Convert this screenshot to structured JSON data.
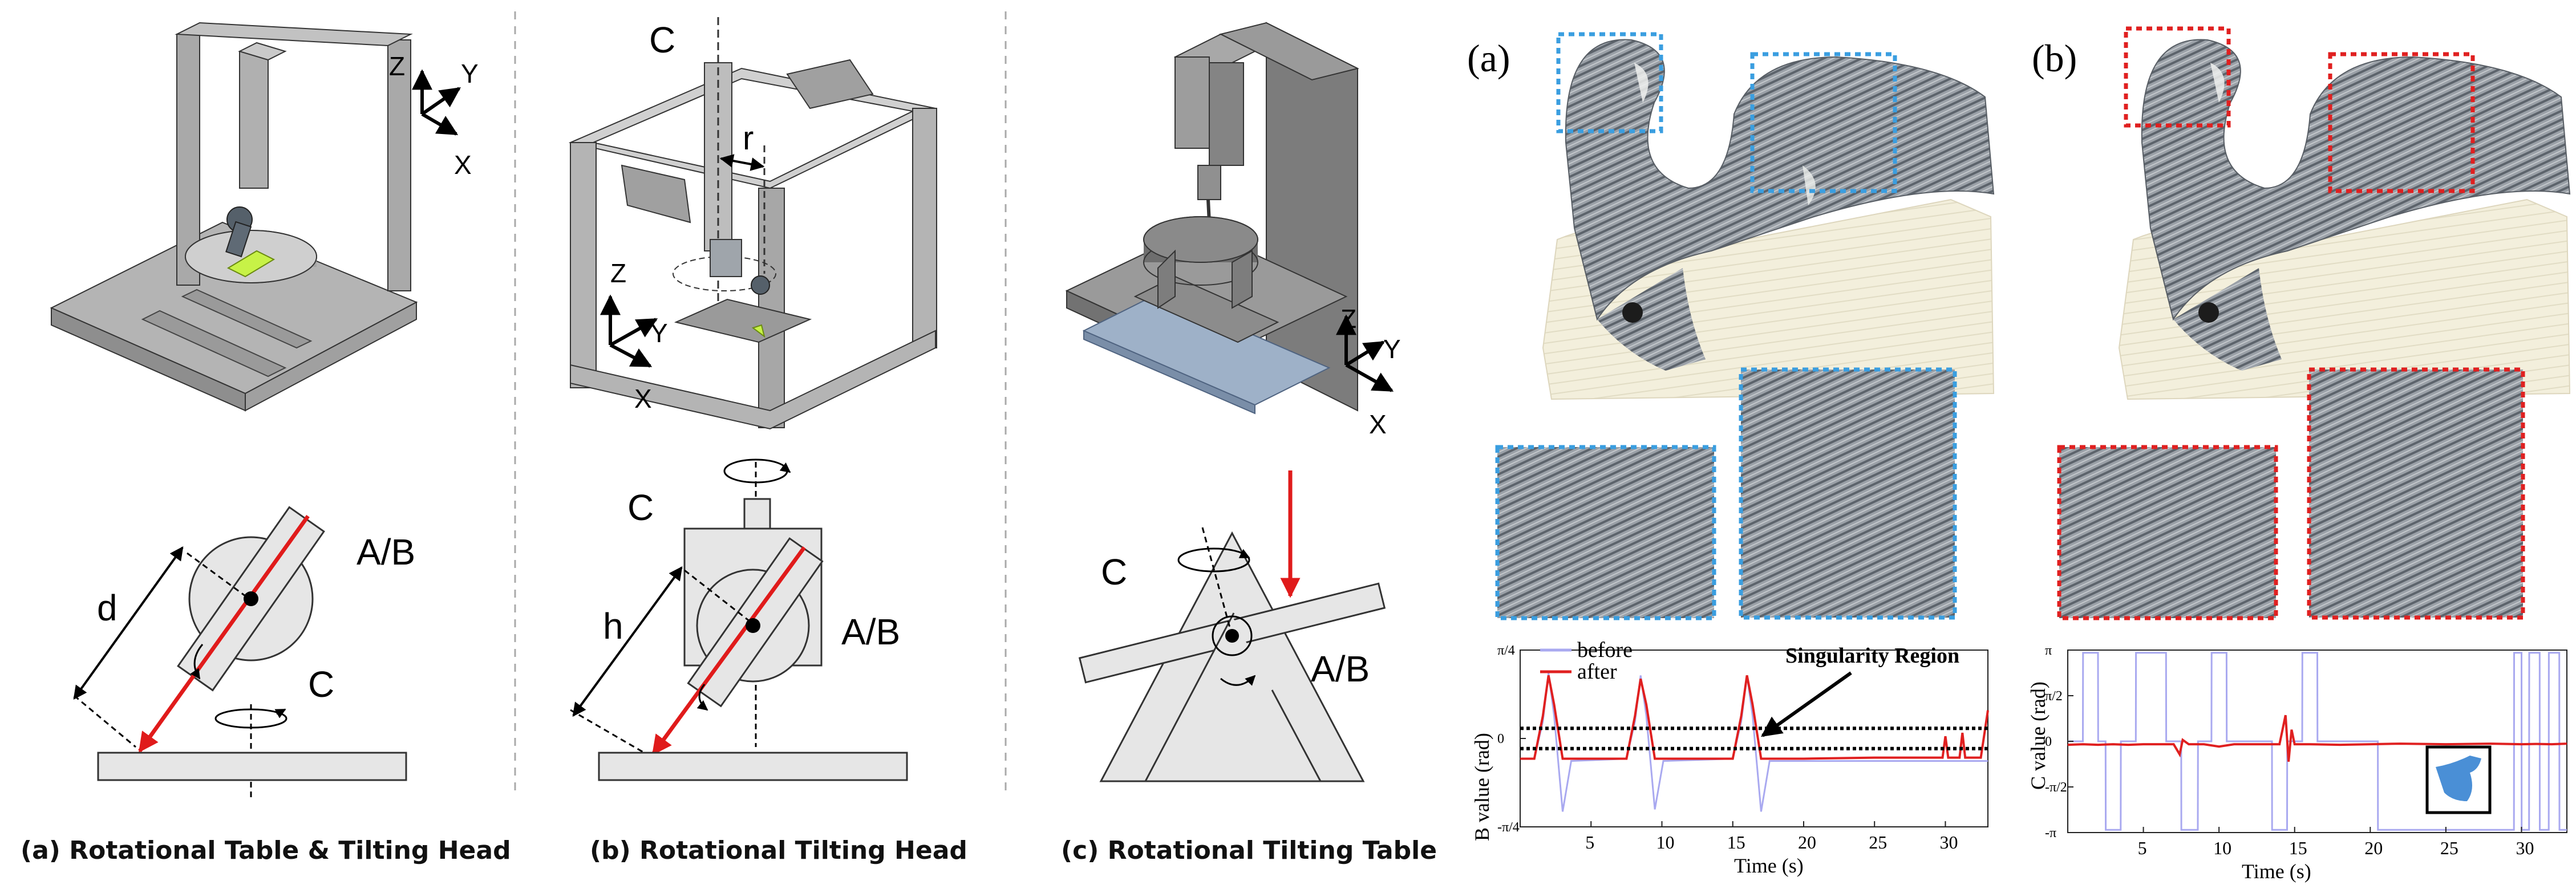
{
  "panels": {
    "a": {
      "caption": "(a) Rotational Table & Tilting Head",
      "axes": {
        "z": "Z",
        "y": "Y",
        "x": "X"
      },
      "labels": {
        "d": "d",
        "ab": "A/B",
        "c": "C"
      }
    },
    "b": {
      "caption": "(b) Rotational Tilting Head",
      "axes": {
        "z": "Z",
        "y": "Y",
        "x": "X"
      },
      "labels": {
        "c_top": "C",
        "r": "r",
        "h": "h",
        "ab": "A/B",
        "c": "C"
      }
    },
    "c": {
      "caption": "(c) Rotational Tilting Table",
      "axes": {
        "z": "Z",
        "y": "Y",
        "x": "X"
      },
      "labels": {
        "c": "C",
        "ab": "A/B"
      }
    }
  },
  "results": {
    "left_tag": "(a)",
    "right_tag": "(b)",
    "left_box_color": "#3a9ee0",
    "right_box_color": "#e02020"
  },
  "chart_data": [
    {
      "type": "line",
      "xlabel": "Time (s)",
      "ylabel": "B value (rad)",
      "xlim": [
        0,
        33
      ],
      "ylim": [
        -0.785,
        0.785
      ],
      "x_ticks": [
        "5",
        "10",
        "15",
        "20",
        "25",
        "30"
      ],
      "y_ticks": [
        "π/4",
        "0",
        "-π/4"
      ],
      "legend": [
        "before",
        "after"
      ],
      "legend_placement": "top-left",
      "annotation": "Singularity Region",
      "singularity_band": [
        -0.09,
        0.09
      ],
      "series": [
        {
          "name": "before",
          "color": "#a9a9f0",
          "x": [
            0,
            1,
            1.6,
            2.0,
            2.4,
            3.0,
            3.6,
            7.5,
            8.1,
            8.5,
            8.9,
            9.5,
            10.1,
            15,
            15.6,
            16.0,
            16.4,
            17.0,
            17.6,
            20,
            25,
            30,
            33
          ],
          "y": [
            -0.18,
            -0.18,
            0.15,
            0.58,
            0.2,
            -0.65,
            -0.2,
            -0.18,
            0.15,
            0.56,
            0.2,
            -0.63,
            -0.2,
            -0.18,
            0.15,
            0.56,
            0.2,
            -0.65,
            -0.2,
            -0.2,
            -0.2,
            -0.2,
            -0.2
          ]
        },
        {
          "name": "after",
          "color": "#e02020",
          "x": [
            0,
            1,
            1.6,
            2.0,
            2.4,
            3.0,
            3.6,
            7.5,
            8.1,
            8.5,
            8.9,
            9.5,
            10.1,
            15,
            15.6,
            16.0,
            16.4,
            17.0,
            17.6,
            20,
            25,
            29.8,
            30.0,
            30.2,
            31,
            31.2,
            31.4,
            32.5,
            33
          ],
          "y": [
            -0.18,
            -0.18,
            0.2,
            0.56,
            0.3,
            -0.18,
            -0.18,
            -0.18,
            0.2,
            0.53,
            0.3,
            -0.18,
            -0.18,
            -0.18,
            0.2,
            0.56,
            0.3,
            -0.18,
            -0.18,
            -0.18,
            -0.17,
            -0.17,
            0.02,
            -0.17,
            -0.17,
            0.05,
            -0.17,
            -0.17,
            0.25
          ]
        }
      ]
    },
    {
      "type": "line",
      "xlabel": "Time (s)",
      "ylabel": "C value (rad)",
      "xlim": [
        0,
        33
      ],
      "ylim": [
        -3.1416,
        3.1416
      ],
      "x_ticks": [
        "5",
        "10",
        "15",
        "20",
        "25",
        "30"
      ],
      "y_ticks": [
        "π",
        "π/2",
        "0",
        "-π/2",
        "-π"
      ],
      "series": [
        {
          "name": "before",
          "color": "#a9a9f0",
          "x": [
            0,
            1,
            1.01,
            2.0,
            2.01,
            2.5,
            2.51,
            3.5,
            3.51,
            4.5,
            4.51,
            6.5,
            6.51,
            7.5,
            7.51,
            8.6,
            8.61,
            9.5,
            9.51,
            10.5,
            10.51,
            13.5,
            13.51,
            14.5,
            14.51,
            15.5,
            15.51,
            16.5,
            16.51,
            20.5,
            20.51,
            29.5,
            29.51,
            30,
            30.01,
            30.5,
            30.51,
            31.2,
            31.21,
            31.8,
            31.81,
            32.5,
            32.51,
            33
          ],
          "y": [
            0,
            0,
            3.05,
            3.05,
            0,
            0,
            -3.05,
            -3.05,
            0,
            0,
            3.05,
            3.05,
            0,
            0,
            -3.05,
            -3.05,
            0,
            0,
            3.05,
            3.05,
            0,
            0,
            -3.05,
            -3.05,
            0,
            0,
            3.05,
            3.05,
            0,
            0,
            -3.05,
            -3.05,
            3.05,
            3.05,
            -3.05,
            -3.05,
            3.05,
            3.05,
            -3.05,
            -3.05,
            3.05,
            3.05,
            -3.05,
            -3.05
          ]
        },
        {
          "name": "after",
          "color": "#e02020",
          "x": [
            0,
            1,
            2,
            3,
            4,
            5,
            6,
            7,
            7.4,
            7.6,
            8,
            9,
            10,
            11,
            13,
            14,
            14.4,
            14.6,
            14.8,
            15,
            16,
            18,
            20,
            22,
            25,
            28,
            30,
            31,
            32,
            33
          ],
          "y": [
            -0.12,
            -0.1,
            -0.12,
            -0.1,
            -0.12,
            -0.1,
            -0.1,
            -0.1,
            -0.45,
            0.05,
            -0.1,
            -0.1,
            -0.18,
            -0.1,
            -0.1,
            -0.1,
            0.9,
            -0.7,
            0.4,
            -0.1,
            -0.1,
            -0.12,
            -0.1,
            -0.08,
            -0.1,
            -0.08,
            -0.1,
            -0.09,
            -0.1,
            -0.08
          ]
        }
      ]
    }
  ]
}
